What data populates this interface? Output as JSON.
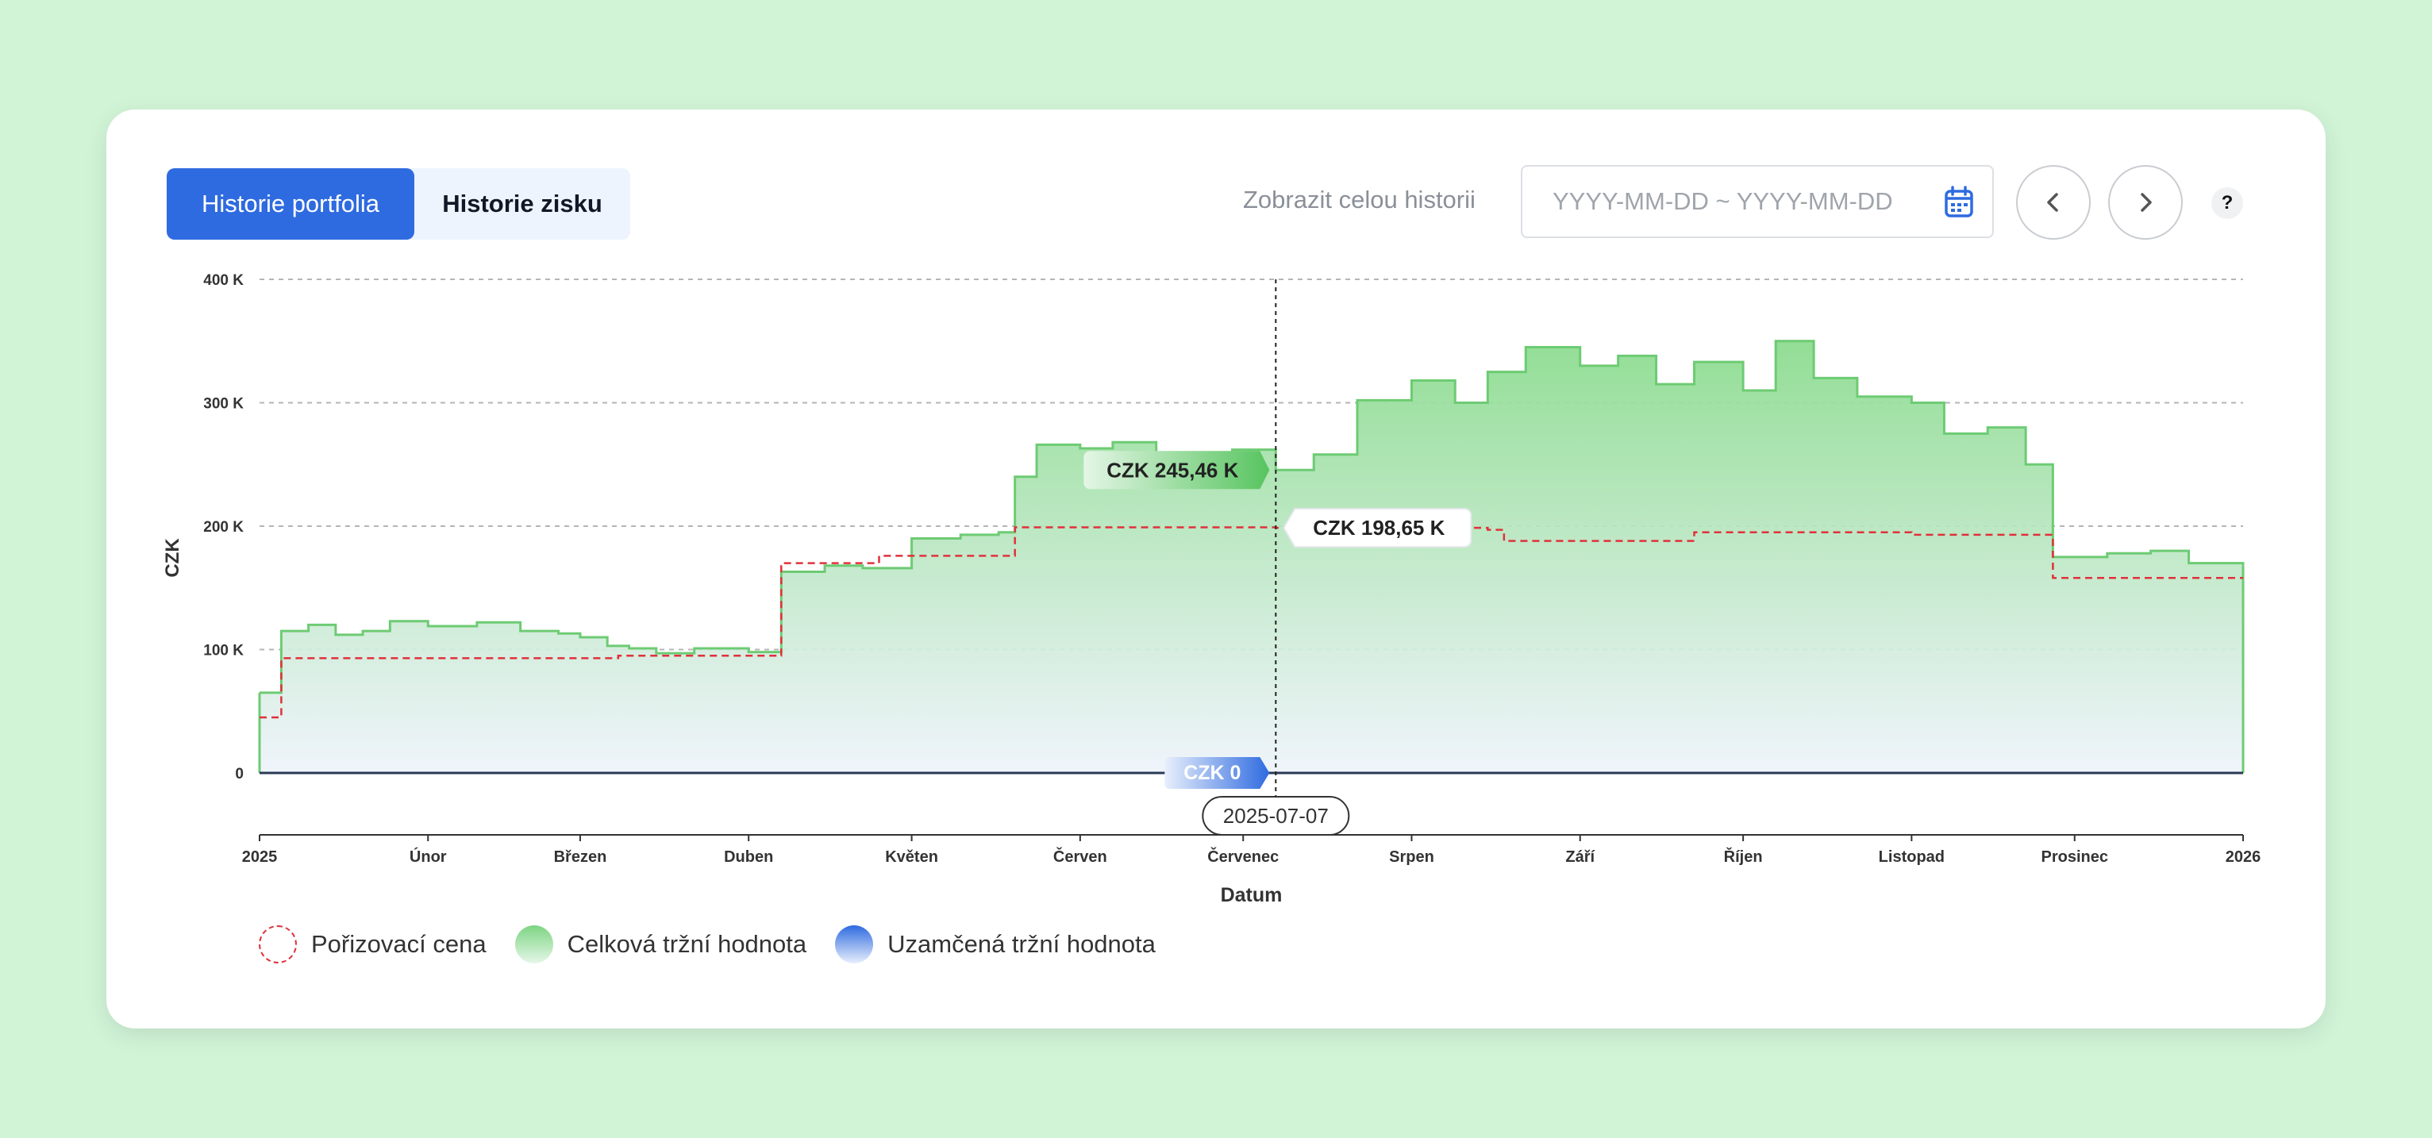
{
  "tabs": [
    {
      "label": "Historie portfolia",
      "active": true
    },
    {
      "label": "Historie zisku",
      "active": false
    }
  ],
  "controls": {
    "full_history": "Zobrazit celou historii",
    "date_placeholder": "YYYY-MM-DD ~ YYYY-MM-DD",
    "help": "?"
  },
  "icons": [
    "calendar-icon",
    "chevron-left-icon",
    "chevron-right-icon",
    "help-icon"
  ],
  "colors": {
    "accent": "#2f6be0",
    "market": "#6dcb73",
    "cost": "#e0313b",
    "locked": "#2f6be0",
    "background": "#d1f4d7"
  },
  "chart_data": {
    "type": "area",
    "xlabel": "Datum",
    "ylabel": "CZK",
    "xlim": [
      "2025-01-01",
      "2026-01-01"
    ],
    "ylim": [
      0,
      400000
    ],
    "yticks": [
      {
        "value": 0,
        "label": "0"
      },
      {
        "value": 100000,
        "label": "100 K"
      },
      {
        "value": 200000,
        "label": "200 K"
      },
      {
        "value": 300000,
        "label": "300 K"
      },
      {
        "value": 400000,
        "label": "400 K"
      }
    ],
    "xticks": [
      {
        "date": "2025-01-01",
        "label": "2025"
      },
      {
        "date": "2025-02-01",
        "label": "Únor"
      },
      {
        "date": "2025-03-01",
        "label": "Březen"
      },
      {
        "date": "2025-04-01",
        "label": "Duben"
      },
      {
        "date": "2025-05-01",
        "label": "Květen"
      },
      {
        "date": "2025-06-01",
        "label": "Červen"
      },
      {
        "date": "2025-07-01",
        "label": "Červenec"
      },
      {
        "date": "2025-08-01",
        "label": "Srpen"
      },
      {
        "date": "2025-09-01",
        "label": "Září"
      },
      {
        "date": "2025-10-01",
        "label": "Říjen"
      },
      {
        "date": "2025-11-01",
        "label": "Listopad"
      },
      {
        "date": "2025-12-01",
        "label": "Prosinec"
      },
      {
        "date": "2026-01-01",
        "label": "2026"
      }
    ],
    "grid": true,
    "legend_position": "bottom-left",
    "series": [
      {
        "name": "Pořizovací cena",
        "style": "dashed-step",
        "points": [
          [
            "2025-01-01",
            45000
          ],
          [
            "2025-01-05",
            93000
          ],
          [
            "2025-02-01",
            93000
          ],
          [
            "2025-03-08",
            95000
          ],
          [
            "2025-04-07",
            170000
          ],
          [
            "2025-04-25",
            176000
          ],
          [
            "2025-05-20",
            199000
          ],
          [
            "2025-07-07",
            198650
          ],
          [
            "2025-08-15",
            197000
          ],
          [
            "2025-08-18",
            188000
          ],
          [
            "2025-09-22",
            195000
          ],
          [
            "2025-11-01",
            193000
          ],
          [
            "2025-11-27",
            158000
          ],
          [
            "2026-01-01",
            158000
          ]
        ]
      },
      {
        "name": "Celková tržní hodnota",
        "style": "area-step",
        "points": [
          [
            "2025-01-01",
            65000
          ],
          [
            "2025-01-05",
            115000
          ],
          [
            "2025-01-10",
            120000
          ],
          [
            "2025-01-15",
            112000
          ],
          [
            "2025-01-20",
            115000
          ],
          [
            "2025-01-25",
            123000
          ],
          [
            "2025-02-01",
            119000
          ],
          [
            "2025-02-10",
            122000
          ],
          [
            "2025-02-18",
            115000
          ],
          [
            "2025-02-25",
            113000
          ],
          [
            "2025-03-01",
            110000
          ],
          [
            "2025-03-06",
            103000
          ],
          [
            "2025-03-10",
            101000
          ],
          [
            "2025-03-15",
            97000
          ],
          [
            "2025-03-22",
            101000
          ],
          [
            "2025-04-01",
            98000
          ],
          [
            "2025-04-07",
            163000
          ],
          [
            "2025-04-15",
            168000
          ],
          [
            "2025-04-22",
            166000
          ],
          [
            "2025-05-01",
            190000
          ],
          [
            "2025-05-10",
            193000
          ],
          [
            "2025-05-17",
            195000
          ],
          [
            "2025-05-20",
            240000
          ],
          [
            "2025-05-24",
            266000
          ],
          [
            "2025-06-01",
            263000
          ],
          [
            "2025-06-07",
            268000
          ],
          [
            "2025-06-15",
            258000
          ],
          [
            "2025-06-22",
            250000
          ],
          [
            "2025-06-29",
            262000
          ],
          [
            "2025-07-07",
            245460
          ],
          [
            "2025-07-14",
            258000
          ],
          [
            "2025-07-22",
            302000
          ],
          [
            "2025-08-01",
            318000
          ],
          [
            "2025-08-09",
            300000
          ],
          [
            "2025-08-15",
            325000
          ],
          [
            "2025-08-22",
            345000
          ],
          [
            "2025-09-01",
            330000
          ],
          [
            "2025-09-08",
            338000
          ],
          [
            "2025-09-15",
            315000
          ],
          [
            "2025-09-22",
            333000
          ],
          [
            "2025-10-01",
            310000
          ],
          [
            "2025-10-07",
            350000
          ],
          [
            "2025-10-14",
            320000
          ],
          [
            "2025-10-22",
            305000
          ],
          [
            "2025-11-01",
            300000
          ],
          [
            "2025-11-07",
            275000
          ],
          [
            "2025-11-15",
            280000
          ],
          [
            "2025-11-22",
            250000
          ],
          [
            "2025-11-27",
            175000
          ],
          [
            "2025-12-07",
            178000
          ],
          [
            "2025-12-15",
            180000
          ],
          [
            "2025-12-22",
            170000
          ],
          [
            "2026-01-01",
            168000
          ]
        ]
      },
      {
        "name": "Uzamčená tržní hodnota",
        "style": "area-step",
        "points": [
          [
            "2025-01-01",
            0
          ],
          [
            "2026-01-01",
            0
          ]
        ]
      }
    ],
    "hover": {
      "date": "2025-07-07",
      "labels": [
        {
          "series": "Celková tržní hodnota",
          "value": 245460,
          "text": "CZK 245,46 K"
        },
        {
          "series": "Pořizovací cena",
          "value": 198650,
          "text": "CZK 198,65 K"
        },
        {
          "series": "Uzamčená tržní hodnota",
          "value": 0,
          "text": "CZK 0"
        }
      ]
    }
  }
}
